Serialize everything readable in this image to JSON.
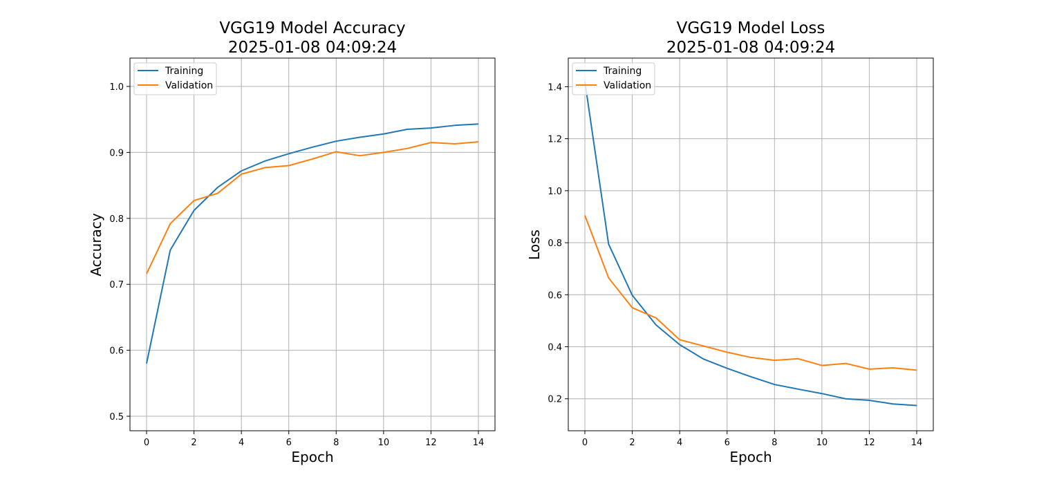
{
  "colors": {
    "training": "#1f77b4",
    "validation": "#ff7f0e",
    "grid": "#b0b0b0"
  },
  "chart_data": [
    {
      "type": "line",
      "title_line1": "VGG19 Model Accuracy",
      "title_line2": "2025-01-08 04:09:24",
      "xlabel": "Epoch",
      "ylabel": "Accuracy",
      "xlim": [
        -0.7,
        14.7
      ],
      "ylim": [
        0.478,
        1.043
      ],
      "xticks": [
        0,
        2,
        4,
        6,
        8,
        10,
        12,
        14
      ],
      "yticks": [
        0.5,
        0.6,
        0.7,
        0.8,
        0.9,
        1.0
      ],
      "ytick_labels": [
        "0.5",
        "0.6",
        "0.7",
        "0.8",
        "0.9",
        "1.0"
      ],
      "grid": true,
      "legend": "upper-left",
      "x": [
        0,
        1,
        2,
        3,
        4,
        5,
        6,
        7,
        8,
        9,
        10,
        11,
        12,
        13,
        14
      ],
      "series": [
        {
          "name": "Training",
          "color": "#1f77b4",
          "values": [
            0.58,
            0.752,
            0.812,
            0.847,
            0.872,
            0.887,
            0.898,
            0.908,
            0.917,
            0.923,
            0.928,
            0.935,
            0.937,
            0.941,
            0.943
          ]
        },
        {
          "name": "Validation",
          "color": "#ff7f0e",
          "values": [
            0.716,
            0.792,
            0.827,
            0.838,
            0.867,
            0.877,
            0.88,
            0.89,
            0.901,
            0.895,
            0.9,
            0.906,
            0.915,
            0.913,
            0.916
          ]
        }
      ]
    },
    {
      "type": "line",
      "title_line1": "VGG19 Model Loss",
      "title_line2": "2025-01-08 04:09:24",
      "xlabel": "Epoch",
      "ylabel": "Loss",
      "xlim": [
        -0.7,
        14.7
      ],
      "ylim": [
        0.077,
        1.51
      ],
      "xticks": [
        0,
        2,
        4,
        6,
        8,
        10,
        12,
        14
      ],
      "yticks": [
        0.2,
        0.4,
        0.6,
        0.8,
        1.0,
        1.2,
        1.4
      ],
      "ytick_labels": [
        "0.2",
        "0.4",
        "0.6",
        "0.8",
        "1.0",
        "1.2",
        "1.4"
      ],
      "grid": true,
      "legend": "upper-left",
      "x": [
        0,
        1,
        2,
        3,
        4,
        5,
        6,
        7,
        8,
        9,
        10,
        11,
        12,
        13,
        14
      ],
      "series": [
        {
          "name": "Training",
          "color": "#1f77b4",
          "values": [
            1.42,
            0.795,
            0.598,
            0.484,
            0.408,
            0.353,
            0.317,
            0.285,
            0.255,
            0.237,
            0.22,
            0.2,
            0.194,
            0.18,
            0.174
          ]
        },
        {
          "name": "Validation",
          "color": "#ff7f0e",
          "values": [
            0.905,
            0.665,
            0.55,
            0.511,
            0.427,
            0.403,
            0.379,
            0.359,
            0.348,
            0.354,
            0.328,
            0.336,
            0.314,
            0.319,
            0.31
          ]
        }
      ]
    }
  ]
}
